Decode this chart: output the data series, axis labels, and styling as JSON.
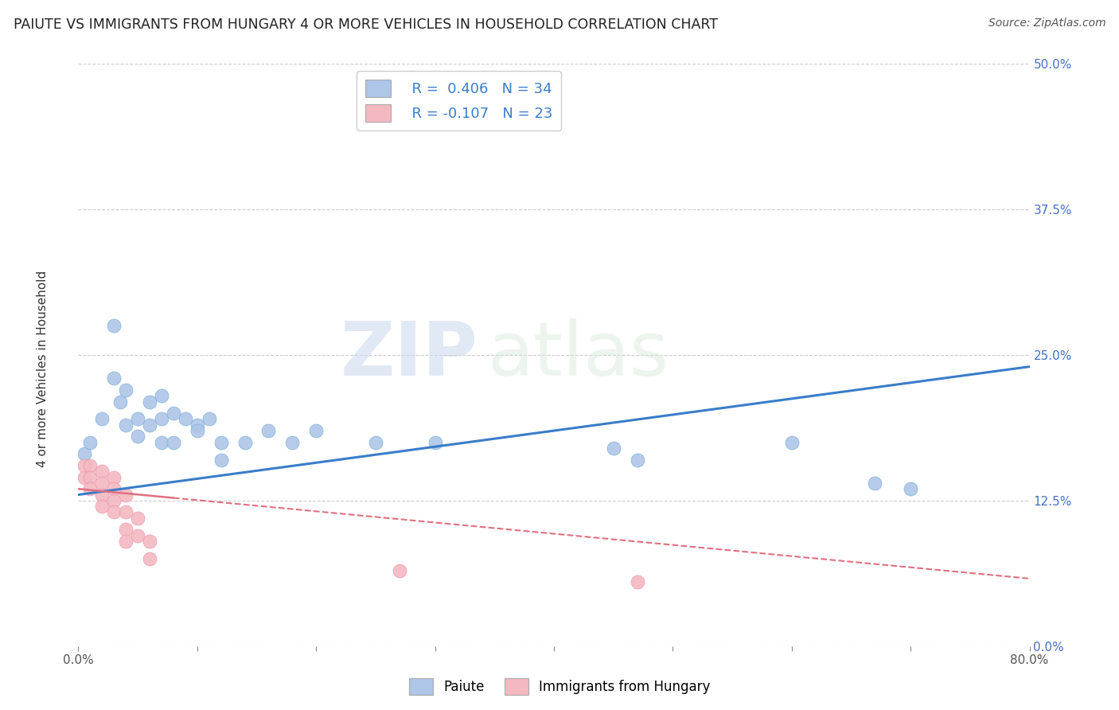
{
  "title": "PAIUTE VS IMMIGRANTS FROM HUNGARY 4 OR MORE VEHICLES IN HOUSEHOLD CORRELATION CHART",
  "source": "Source: ZipAtlas.com",
  "ylabel": "4 or more Vehicles in Household",
  "xlim": [
    0.0,
    0.8
  ],
  "ylim": [
    0.0,
    0.5
  ],
  "xticks": [
    0.0,
    0.1,
    0.2,
    0.3,
    0.4,
    0.5,
    0.6,
    0.7,
    0.8
  ],
  "yticks": [
    0.0,
    0.125,
    0.25,
    0.375,
    0.5
  ],
  "ytick_labels": [
    "0.0%",
    "12.5%",
    "25.0%",
    "37.5%",
    "50.0%"
  ],
  "xtick_labels": [
    "0.0%",
    "",
    "",
    "",
    "",
    "",
    "",
    "",
    "80.0%"
  ],
  "watermark_zip": "ZIP",
  "watermark_atlas": "atlas",
  "paiute_color": "#aec6e8",
  "paiute_edge_color": "#7aafd4",
  "hungary_color": "#f4b8c1",
  "hungary_edge_color": "#e898aa",
  "paiute_line_color": "#3a7dc9",
  "hungary_line_color": "#e07080",
  "paiute_scatter": [
    [
      0.005,
      0.165
    ],
    [
      0.01,
      0.175
    ],
    [
      0.02,
      0.195
    ],
    [
      0.03,
      0.275
    ],
    [
      0.03,
      0.23
    ],
    [
      0.035,
      0.21
    ],
    [
      0.04,
      0.22
    ],
    [
      0.04,
      0.19
    ],
    [
      0.05,
      0.195
    ],
    [
      0.05,
      0.18
    ],
    [
      0.06,
      0.21
    ],
    [
      0.06,
      0.19
    ],
    [
      0.07,
      0.215
    ],
    [
      0.07,
      0.195
    ],
    [
      0.07,
      0.175
    ],
    [
      0.08,
      0.2
    ],
    [
      0.08,
      0.175
    ],
    [
      0.09,
      0.195
    ],
    [
      0.1,
      0.19
    ],
    [
      0.1,
      0.185
    ],
    [
      0.11,
      0.195
    ],
    [
      0.12,
      0.175
    ],
    [
      0.12,
      0.16
    ],
    [
      0.14,
      0.175
    ],
    [
      0.16,
      0.185
    ],
    [
      0.18,
      0.175
    ],
    [
      0.2,
      0.185
    ],
    [
      0.25,
      0.175
    ],
    [
      0.3,
      0.175
    ],
    [
      0.45,
      0.17
    ],
    [
      0.47,
      0.16
    ],
    [
      0.6,
      0.175
    ],
    [
      0.67,
      0.14
    ],
    [
      0.7,
      0.135
    ]
  ],
  "hungary_scatter": [
    [
      0.005,
      0.155
    ],
    [
      0.005,
      0.145
    ],
    [
      0.01,
      0.155
    ],
    [
      0.01,
      0.145
    ],
    [
      0.01,
      0.135
    ],
    [
      0.02,
      0.15
    ],
    [
      0.02,
      0.14
    ],
    [
      0.02,
      0.13
    ],
    [
      0.02,
      0.12
    ],
    [
      0.03,
      0.145
    ],
    [
      0.03,
      0.135
    ],
    [
      0.03,
      0.125
    ],
    [
      0.03,
      0.115
    ],
    [
      0.04,
      0.13
    ],
    [
      0.04,
      0.115
    ],
    [
      0.04,
      0.1
    ],
    [
      0.04,
      0.09
    ],
    [
      0.05,
      0.11
    ],
    [
      0.05,
      0.095
    ],
    [
      0.06,
      0.09
    ],
    [
      0.06,
      0.075
    ],
    [
      0.27,
      0.065
    ],
    [
      0.47,
      0.055
    ]
  ],
  "paiute_trendline": [
    [
      0.0,
      0.13
    ],
    [
      0.8,
      0.24
    ]
  ],
  "hungary_trendline": [
    [
      0.0,
      0.135
    ],
    [
      0.8,
      0.058
    ]
  ]
}
